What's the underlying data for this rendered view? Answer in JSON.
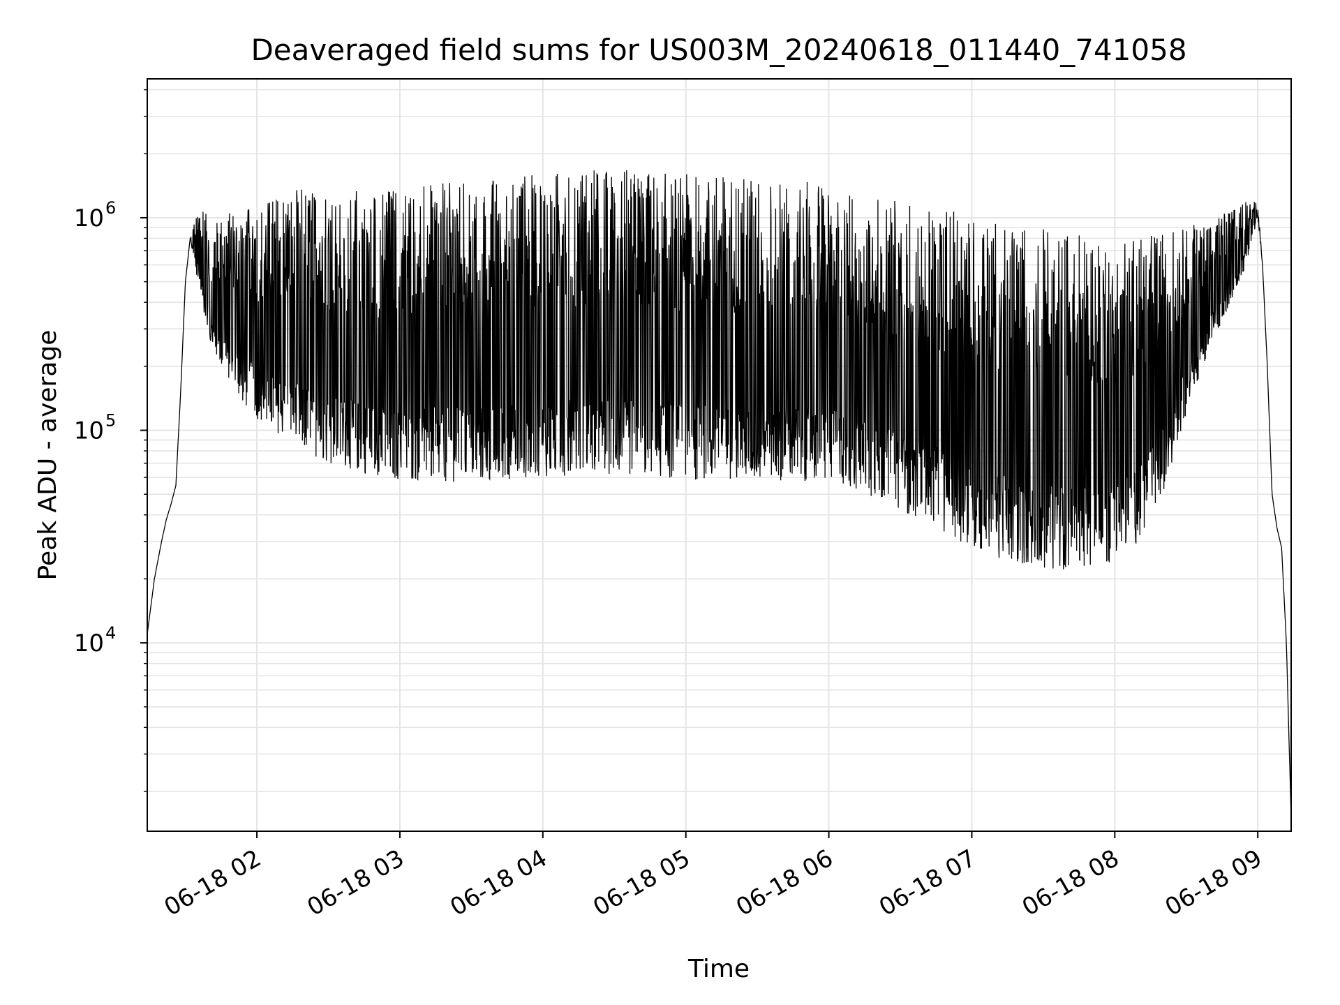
{
  "chart_data": {
    "type": "line",
    "title": "Deaveraged field sums for US003M_20240618_011440_741058",
    "xlabel": "Time",
    "ylabel": "Peak ADU - average",
    "yscale": "log",
    "ylim": [
      1300,
      4500000
    ],
    "xlim": [
      "06-18 01:14",
      "06-18 09:14"
    ],
    "grid": true,
    "line_color": "#000000",
    "x_ticks": [
      {
        "value": "06-18 02:00",
        "label": "06-18 02"
      },
      {
        "value": "06-18 03:00",
        "label": "06-18 03"
      },
      {
        "value": "06-18 04:00",
        "label": "06-18 04"
      },
      {
        "value": "06-18 05:00",
        "label": "06-18 05"
      },
      {
        "value": "06-18 06:00",
        "label": "06-18 06"
      },
      {
        "value": "06-18 07:00",
        "label": "06-18 07"
      },
      {
        "value": "06-18 08:00",
        "label": "06-18 08"
      },
      {
        "value": "06-18 09:00",
        "label": "06-18 09"
      }
    ],
    "y_ticks": [
      {
        "value": 10000,
        "base": "10",
        "exp": "4"
      },
      {
        "value": 100000,
        "base": "10",
        "exp": "5"
      },
      {
        "value": 1000000,
        "base": "10",
        "exp": "6"
      }
    ],
    "series": [
      {
        "x": [
          "06-18 01:14",
          "06-18 01:17",
          "06-18 01:20",
          "06-18 01:22",
          "06-18 01:24",
          "06-18 01:26",
          "06-18 01:28",
          "06-18 01:30",
          "06-18 01:32",
          "06-18 01:35",
          "06-18 01:38",
          "06-18 01:40",
          "06-18 01:45",
          "06-18 01:50",
          "06-18 01:55",
          "06-18 02:00",
          "06-18 02:10",
          "06-18 02:20",
          "06-18 02:30",
          "06-18 02:40",
          "06-18 02:50",
          "06-18 03:00",
          "06-18 03:15",
          "06-18 03:30",
          "06-18 03:45",
          "06-18 04:00",
          "06-18 04:15",
          "06-18 04:30",
          "06-18 04:45",
          "06-18 05:00",
          "06-18 05:15",
          "06-18 05:30",
          "06-18 05:45",
          "06-18 06:00",
          "06-18 06:15",
          "06-18 06:30",
          "06-18 06:45",
          "06-18 07:00",
          "06-18 07:15",
          "06-18 07:30",
          "06-18 07:45",
          "06-18 08:00",
          "06-18 08:10",
          "06-18 08:20",
          "06-18 08:30",
          "06-18 08:40",
          "06-18 08:50",
          "06-18 08:55",
          "06-18 09:00",
          "06-18 09:02",
          "06-18 09:04",
          "06-18 09:06",
          "06-18 09:08",
          "06-18 09:10",
          "06-18 09:12",
          "06-18 09:14"
        ],
        "low": [
          11000,
          20000,
          30000,
          38000,
          45000,
          55000,
          150000,
          500000,
          800000,
          500000,
          350000,
          250000,
          200000,
          160000,
          130000,
          110000,
          95000,
          80000,
          70000,
          65000,
          60000,
          58000,
          57000,
          57000,
          58000,
          60000,
          62000,
          62000,
          60000,
          58000,
          58000,
          58000,
          58000,
          57000,
          50000,
          42000,
          35000,
          28000,
          24000,
          22000,
          22000,
          24000,
          30000,
          50000,
          120000,
          250000,
          400000,
          600000,
          1000000,
          600000,
          200000,
          50000,
          35000,
          28000,
          10000,
          1500
        ],
        "high": [
          11000,
          20000,
          30000,
          38000,
          45000,
          55000,
          150000,
          500000,
          800000,
          1100000,
          1200000,
          900000,
          1000000,
          1100000,
          1100000,
          1150000,
          1300000,
          1400000,
          1400000,
          1400000,
          1400000,
          1400000,
          1450000,
          1500000,
          1600000,
          1650000,
          1700000,
          1700000,
          1650000,
          1600000,
          1600000,
          1550000,
          1500000,
          1450000,
          1300000,
          1200000,
          1150000,
          1000000,
          950000,
          900000,
          850000,
          800000,
          800000,
          850000,
          900000,
          1000000,
          1100000,
          1200000,
          1200000,
          600000,
          200000,
          50000,
          35000,
          28000,
          10000,
          1500
        ]
      }
    ]
  }
}
